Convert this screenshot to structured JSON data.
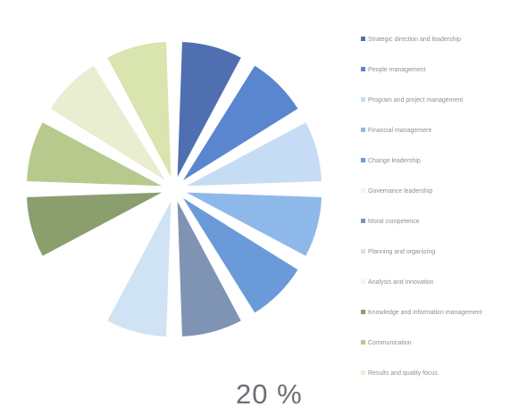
{
  "chart_data": {
    "type": "pie",
    "label": "20 %",
    "slices": [
      {
        "name": "Strategic direction and leadership",
        "value": 1,
        "color": "#4f6fb0"
      },
      {
        "name": "People management",
        "value": 1,
        "color": "#5a86cf"
      },
      {
        "name": "Program and project management",
        "value": 1,
        "color": "#c6dcf4"
      },
      {
        "name": "Financial management",
        "value": 1,
        "color": "#8fb8ea"
      },
      {
        "name": "Change leadership",
        "value": 1,
        "color": "#6a9ad8"
      },
      {
        "name": "Governance leadership",
        "value": 0,
        "color": "#ffffff"
      },
      {
        "name": "Moral competence",
        "value": 1,
        "color": "#7f93b4"
      },
      {
        "name": "Planning and organizing",
        "value": 1,
        "color": "#cfe3f5"
      },
      {
        "name": "Analysis and innovation",
        "value": 0,
        "color": "#ffffff"
      },
      {
        "name": "Knowledge and information management",
        "value": 1,
        "color": "#8a9e6e"
      },
      {
        "name": "Communication",
        "value": 1,
        "color": "#b7c98c"
      },
      {
        "name": "Results and quality focus",
        "value": 1,
        "color": "#e8eecf"
      },
      {
        "name": "",
        "value": 1,
        "color": "#d9e4ae"
      }
    ]
  }
}
